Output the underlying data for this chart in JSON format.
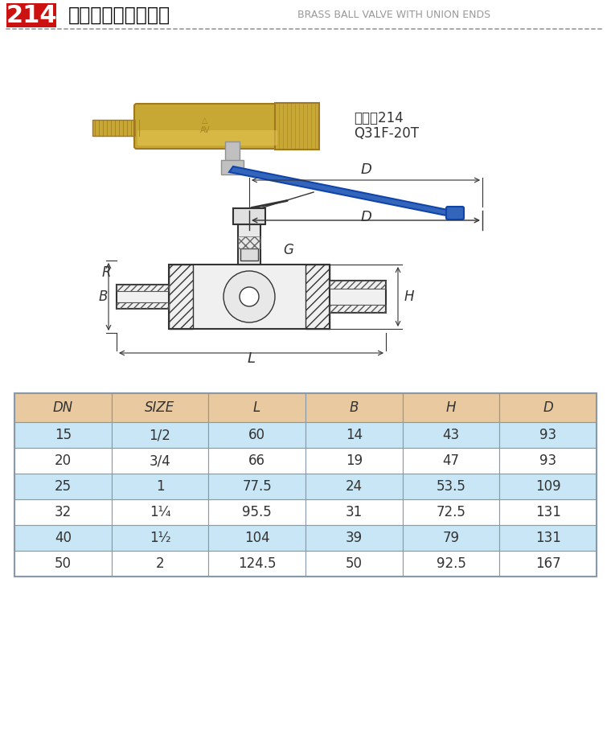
{
  "title_number": "214",
  "title_cn": "黄铜球阀（足通口）",
  "title_en": "BRASS BALL VALVE WITH UNION ENDS",
  "product_code": "货号：214",
  "product_model": "Q31F-20T",
  "table_headers": [
    "DN",
    "SIZE",
    "L",
    "B",
    "H",
    "D"
  ],
  "table_data": [
    [
      "15",
      "1/2",
      "60",
      "14",
      "43",
      "93"
    ],
    [
      "20",
      "3/4",
      "66",
      "19",
      "47",
      "93"
    ],
    [
      "25",
      "1",
      "77.5",
      "24",
      "53.5",
      "109"
    ],
    [
      "32",
      "1¹⁄₄",
      "95.5",
      "31",
      "72.5",
      "131"
    ],
    [
      "40",
      "1¹⁄₂",
      "104",
      "39",
      "79",
      "131"
    ],
    [
      "50",
      "2",
      "124.5",
      "50",
      "92.5",
      "167"
    ]
  ],
  "header_bg": "#e8c9a0",
  "row_bg_blue": "#c8e6f5",
  "row_bg_white": "#ffffff",
  "table_border": "#8899aa",
  "title_red_bg": "#cc1111",
  "title_white": "#ffffff",
  "bg_color": "#ffffff",
  "dim_labels": [
    "D",
    "G",
    "H",
    "R",
    "B",
    "L"
  ],
  "dotted_line_color": "#aaaaaa"
}
